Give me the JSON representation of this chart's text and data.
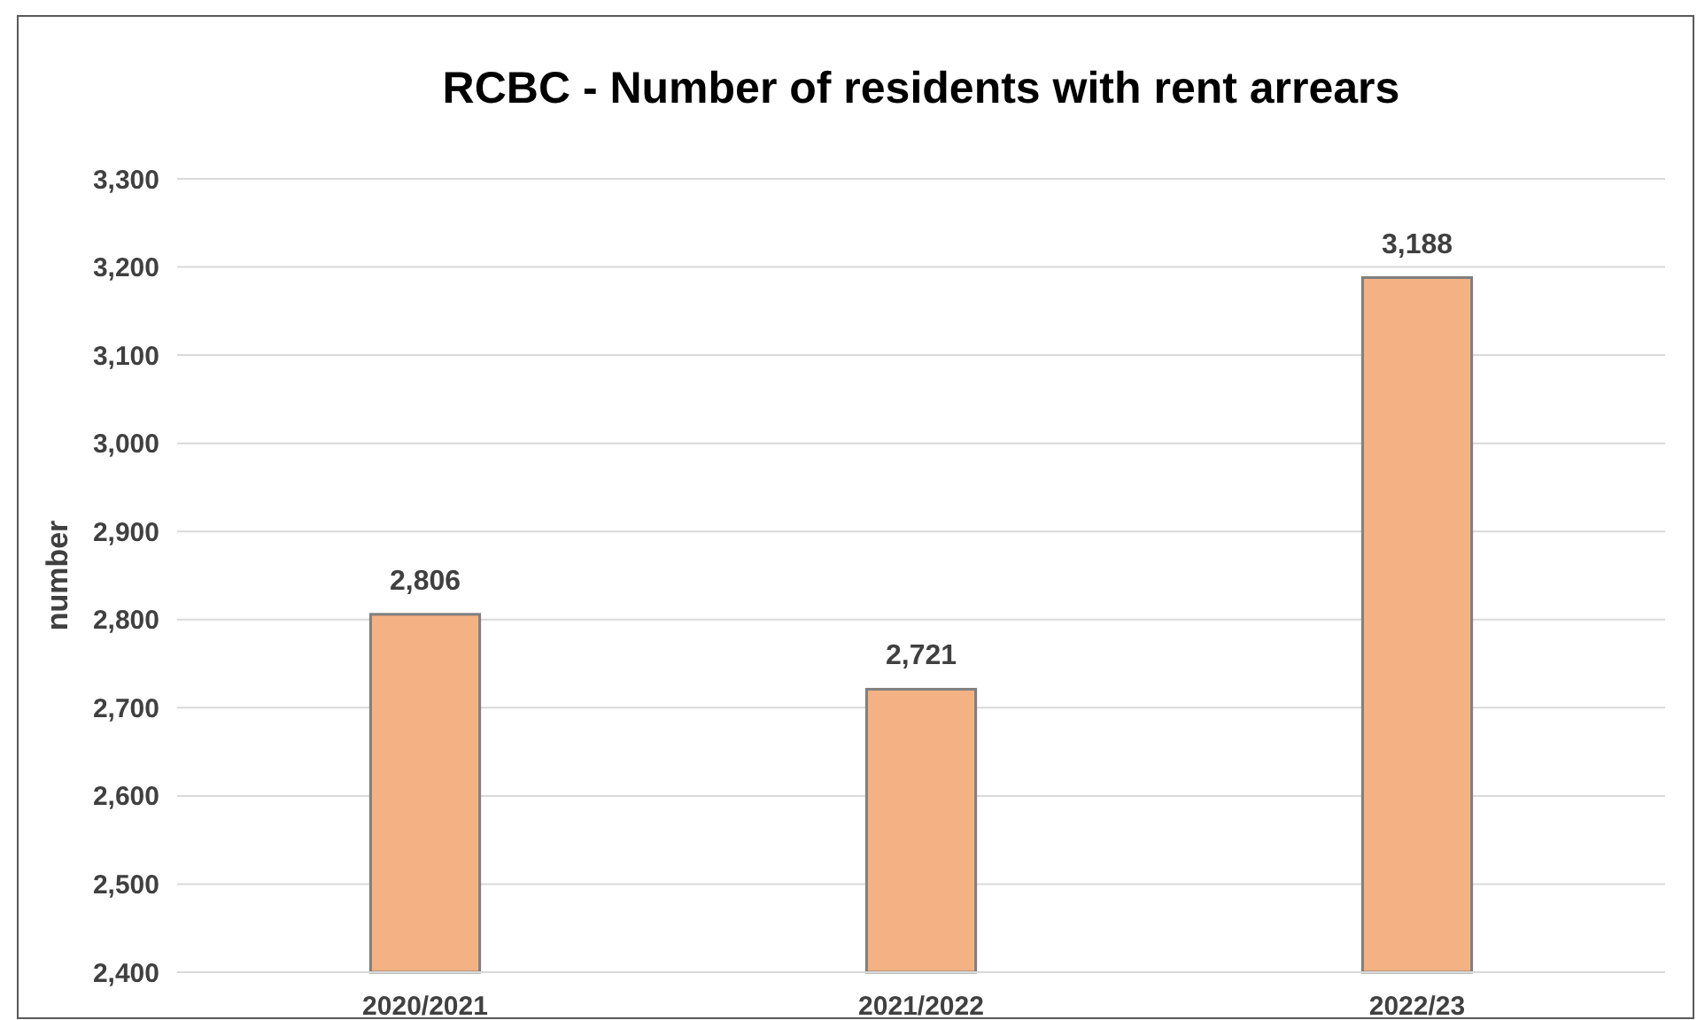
{
  "chart_data": {
    "type": "bar",
    "title": "RCBC - Number of residents with rent arrears",
    "ylabel": "number",
    "categories": [
      "2020/2021",
      "2021/2022",
      "2022/23"
    ],
    "values": [
      2806,
      2721,
      3188
    ],
    "color": "#f4b183",
    "ylim": [
      2400,
      3300
    ],
    "yticks": [
      {
        "value": 2400,
        "label": "2,400"
      },
      {
        "value": 2500,
        "label": "2,500"
      },
      {
        "value": 2600,
        "label": "2,600"
      },
      {
        "value": 2700,
        "label": "2,700"
      },
      {
        "value": 2800,
        "label": "2,800"
      },
      {
        "value": 2900,
        "label": "2,900"
      },
      {
        "value": 3000,
        "label": "3,000"
      },
      {
        "value": 3100,
        "label": "3,100"
      },
      {
        "value": 3200,
        "label": "3,200"
      },
      {
        "value": 3300,
        "label": "3,300"
      }
    ],
    "grid": "y",
    "value_labels": [
      "2,806",
      "2,721",
      "3,188"
    ]
  }
}
